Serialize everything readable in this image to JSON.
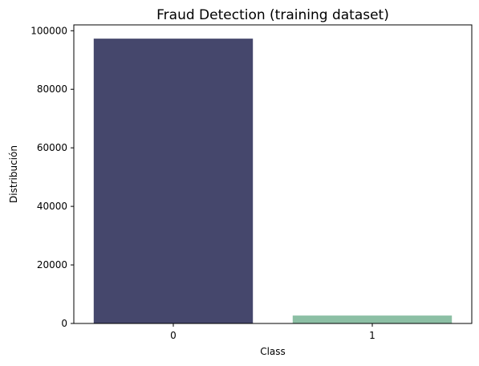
{
  "chart_data": {
    "type": "bar",
    "title": "Fraud Detection (training dataset)",
    "xlabel": "Class",
    "ylabel": "Distribución",
    "categories": [
      "0",
      "1"
    ],
    "values": [
      97300,
      2700
    ],
    "ylim": [
      0,
      102000
    ],
    "yticks": [
      0,
      20000,
      40000,
      60000,
      80000,
      100000
    ],
    "ytick_labels": [
      "0",
      "20000",
      "40000",
      "60000",
      "80000",
      "100000"
    ],
    "bar_colors": [
      "#45476c",
      "#8cbfa4"
    ],
    "grid": false,
    "legend": "none"
  }
}
